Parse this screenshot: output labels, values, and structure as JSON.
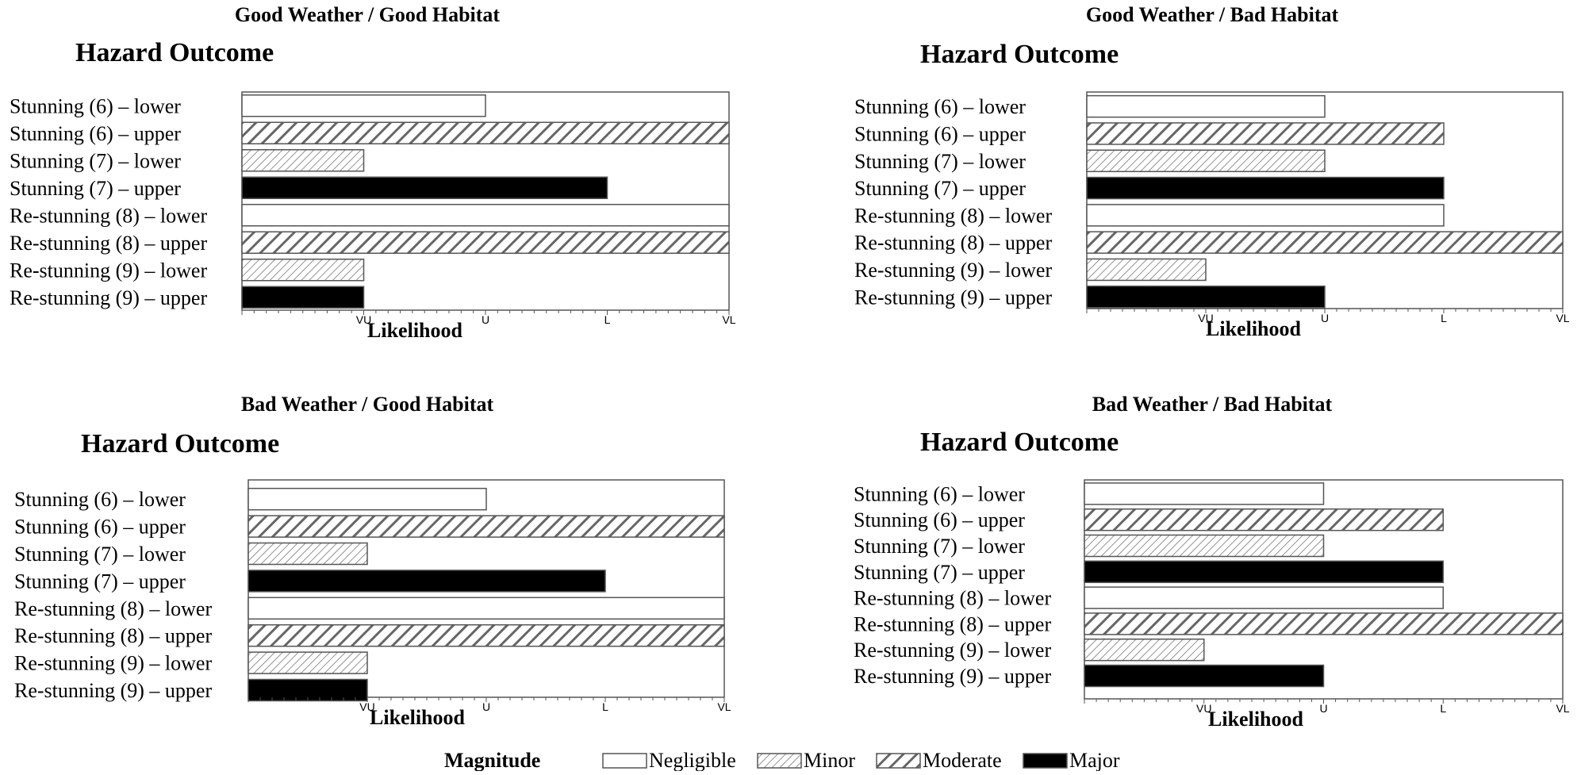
{
  "legend": {
    "title": "Magnitude",
    "items": [
      {
        "label": "Negligible",
        "pattern": "none"
      },
      {
        "label": "Minor",
        "pattern": "fine"
      },
      {
        "label": "Moderate",
        "pattern": "coarse"
      },
      {
        "label": "Major",
        "pattern": "solid"
      }
    ]
  },
  "colors": {
    "bar_stroke": "#555555",
    "major": "#000000",
    "hatch": "#666666",
    "frame": "#555555"
  },
  "chart_data": [
    {
      "type": "bar",
      "orientation": "horizontal",
      "subtitle": "Good Weather / Good Habitat",
      "title": "Hazard Outcome",
      "xlabel": "Likelihood",
      "ticks": [
        "VU",
        "U",
        "L",
        "VL"
      ],
      "categories": [
        "Stunning (6) – lower",
        "Stunning (6) – upper",
        "Stunning (7) – lower",
        "Stunning (7) – upper",
        "Re-stunning (8) – lower",
        "Re-stunning (8) – upper",
        "Re-stunning (9) – lower",
        "Re-stunning (9) – upper"
      ],
      "magnitudes": [
        "Negligible",
        "Moderate",
        "Minor",
        "Major",
        "Negligible",
        "Moderate",
        "Minor",
        "Major"
      ],
      "values": [
        2,
        4,
        1,
        3,
        4,
        4,
        1,
        1
      ],
      "xlim": [
        0,
        4
      ]
    },
    {
      "type": "bar",
      "orientation": "horizontal",
      "subtitle": "Good Weather / Bad Habitat",
      "title": "Hazard Outcome",
      "xlabel": "Likelihood",
      "ticks": [
        "VU",
        "U",
        "L",
        "VL"
      ],
      "categories": [
        "Stunning (6) – lower",
        "Stunning (6) – upper",
        "Stunning (7) – lower",
        "Stunning (7) – upper",
        "Re-stunning (8) – lower",
        "Re-stunning (8) – upper",
        "Re-stunning (9) – lower",
        "Re-stunning (9) – upper"
      ],
      "magnitudes": [
        "Negligible",
        "Moderate",
        "Minor",
        "Major",
        "Negligible",
        "Moderate",
        "Minor",
        "Major"
      ],
      "values": [
        2,
        3,
        2,
        3,
        3,
        4,
        1,
        2
      ],
      "xlim": [
        0,
        4
      ]
    },
    {
      "type": "bar",
      "orientation": "horizontal",
      "subtitle": "Bad Weather / Good Habitat",
      "title": "Hazard Outcome",
      "xlabel": "Likelihood",
      "ticks": [
        "VU",
        "U",
        "L",
        "VL"
      ],
      "categories": [
        "Stunning (6) – lower",
        "Stunning (6) – upper",
        "Stunning (7) – lower",
        "Stunning (7) – upper",
        "Re-stunning (8) – lower",
        "Re-stunning (8) – upper",
        "Re-stunning (9) – lower",
        "Re-stunning (9) – upper"
      ],
      "magnitudes": [
        "Negligible",
        "Moderate",
        "Minor",
        "Major",
        "Negligible",
        "Moderate",
        "Minor",
        "Major"
      ],
      "values": [
        2,
        4,
        1,
        3,
        4,
        4,
        1,
        1
      ],
      "xlim": [
        0,
        4
      ]
    },
    {
      "type": "bar",
      "orientation": "horizontal",
      "subtitle": "Bad Weather / Bad Habitat",
      "title": "Hazard Outcome",
      "xlabel": "Likelihood",
      "ticks": [
        "VU",
        "U",
        "L",
        "VL"
      ],
      "categories": [
        "Stunning (6) – lower",
        "Stunning (6) – upper",
        "Stunning (7) – lower",
        "Stunning (7) – upper",
        "Re-stunning (8) – lower",
        "Re-stunning (8) – upper",
        "Re-stunning (9) – lower",
        "Re-stunning (9) – upper"
      ],
      "magnitudes": [
        "Negligible",
        "Moderate",
        "Minor",
        "Major",
        "Negligible",
        "Moderate",
        "Minor",
        "Major"
      ],
      "values": [
        2,
        3,
        2,
        3,
        3,
        4,
        1,
        2
      ],
      "xlim": [
        0,
        4
      ]
    }
  ]
}
